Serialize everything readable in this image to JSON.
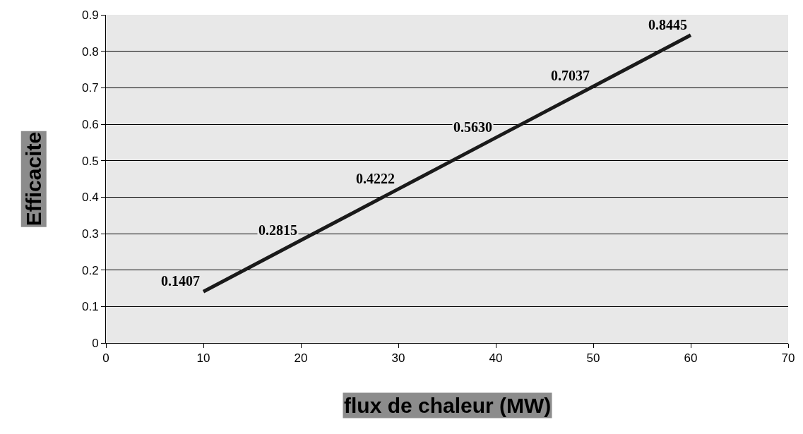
{
  "chart_data": {
    "type": "line",
    "xlabel": "flux de chaleur (MW)",
    "ylabel": "Efficacite",
    "x": [
      10,
      20,
      30,
      40,
      50,
      60
    ],
    "series": [
      {
        "color": "#1a1a1a",
        "values": [
          0.1407,
          0.2815,
          0.4222,
          0.563,
          0.7037,
          0.8445
        ],
        "value_labels": [
          "0.1407",
          "0.2815",
          "0.4222",
          "0.5630",
          "0.7037",
          "0.8445"
        ]
      }
    ],
    "xlim": [
      0,
      70
    ],
    "xticks": [
      0,
      10,
      20,
      30,
      40,
      50,
      60,
      70
    ],
    "ylim": [
      0,
      0.9
    ],
    "yticks": [
      0,
      0.1,
      0.2,
      0.3,
      0.4,
      0.5,
      0.6,
      0.7,
      0.8,
      0.9
    ],
    "grid": "y",
    "marker": "none",
    "line_style": "solid"
  }
}
